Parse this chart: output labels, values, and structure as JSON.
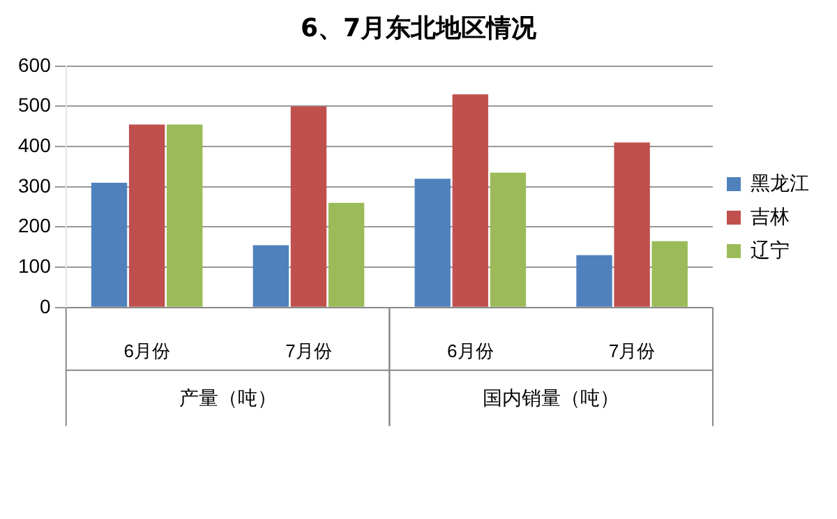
{
  "chart_data": {
    "type": "bar",
    "title": "6、7月东北地区情况",
    "categories": [
      "6月份",
      "7月份",
      "6月份",
      "7月份"
    ],
    "annotations": [
      "产量（吨）",
      "国内销量（吨）"
    ],
    "series": [
      {
        "name": "黑龙江",
        "color": "#4f81bd",
        "values": [
          310,
          155,
          320,
          130
        ]
      },
      {
        "name": "吉林",
        "color": "#c0504d",
        "values": [
          455,
          500,
          530,
          410
        ]
      },
      {
        "name": "辽宁",
        "color": "#9bbb59",
        "values": [
          455,
          260,
          335,
          165
        ]
      }
    ],
    "ylim": [
      0,
      600
    ],
    "yticks": [
      0,
      100,
      200,
      300,
      400,
      500,
      600
    ],
    "grid": "y",
    "legend": "right"
  }
}
